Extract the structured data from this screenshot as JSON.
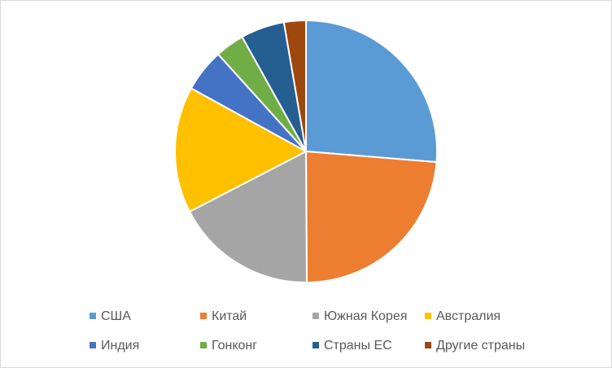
{
  "chart_data": {
    "type": "pie",
    "categories": [
      "США",
      "Китай",
      "Южная Корея",
      "Австралия",
      "Индия",
      "Гонконг",
      "Страны ЕС",
      "Другие страны"
    ],
    "values": [
      26.3,
      23.6,
      17.5,
      15.6,
      5.3,
      3.6,
      5.4,
      2.7
    ],
    "colors": [
      "#5b9bd5",
      "#ed7d31",
      "#a5a5a5",
      "#ffc000",
      "#4472c4",
      "#70ad47",
      "#255e91",
      "#9e480e"
    ],
    "legend": "bottom"
  }
}
